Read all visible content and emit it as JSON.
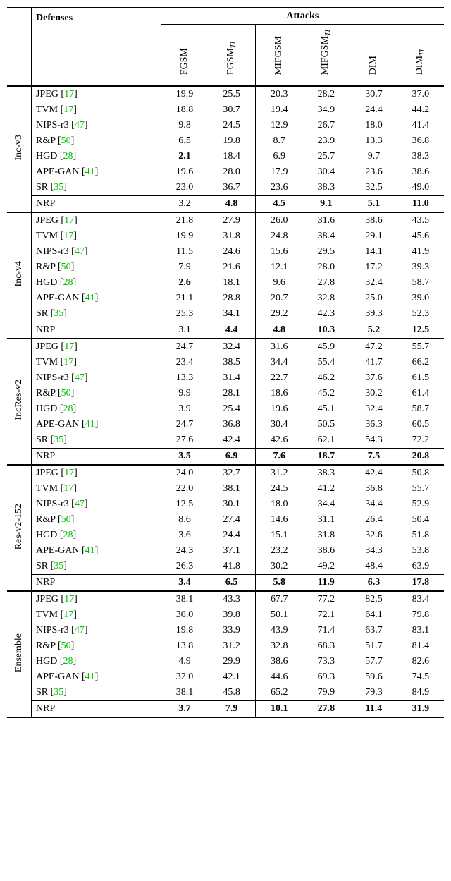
{
  "header": {
    "defenses_label": "Defenses",
    "attacks_label": "Attacks",
    "attack_cols": [
      "FGSM",
      "FGSM",
      "MIFGSM",
      "MIFGSM",
      "DIM",
      "DIM"
    ],
    "attack_subscripts": [
      "",
      "TI",
      "",
      "TI",
      "",
      "TI"
    ]
  },
  "ref_color": "#00c000",
  "bold_cells": {
    "Inc-v3": {
      "NRP": [
        1,
        2,
        3,
        4,
        5
      ],
      "HGD": [
        0
      ]
    },
    "Inc-v4": {
      "NRP": [
        1,
        2,
        3,
        4,
        5
      ],
      "HGD": [
        0
      ]
    },
    "IncRes-v2": {
      "NRP": [
        0,
        1,
        2,
        3,
        4,
        5
      ]
    },
    "Res-v2-152": {
      "NRP": [
        0,
        1,
        2,
        3,
        4,
        5
      ]
    },
    "Ensemble": {
      "NRP": [
        0,
        1,
        2,
        3,
        4,
        5
      ]
    }
  },
  "blocks": [
    {
      "model": "Inc-v3",
      "rows": [
        {
          "name": "JPEG",
          "ref": "17",
          "v": [
            "19.9",
            "25.5",
            "20.3",
            "28.2",
            "30.7",
            "37.0"
          ]
        },
        {
          "name": "TVM",
          "ref": "17",
          "v": [
            "18.8",
            "30.7",
            "19.4",
            "34.9",
            "24.4",
            "44.2"
          ]
        },
        {
          "name": "NIPS-r3",
          "ref": "47",
          "v": [
            "9.8",
            "24.5",
            "12.9",
            "26.7",
            "18.0",
            "41.4"
          ]
        },
        {
          "name": "R&P",
          "ref": "50",
          "v": [
            "6.5",
            "19.8",
            "8.7",
            "23.9",
            "13.3",
            "36.8"
          ]
        },
        {
          "name": "HGD",
          "ref": "28",
          "v": [
            "2.1",
            "18.4",
            "6.9",
            "25.7",
            "9.7",
            "38.3"
          ]
        },
        {
          "name": "APE-GAN",
          "ref": "41",
          "v": [
            "19.6",
            "28.0",
            "17.9",
            "30.4",
            "23.6",
            "38.6"
          ]
        },
        {
          "name": "SR",
          "ref": "35",
          "v": [
            "23.0",
            "36.7",
            "23.6",
            "38.3",
            "32.5",
            "49.0"
          ]
        }
      ],
      "nrp": {
        "name": "NRP",
        "v": [
          "3.2",
          "4.8",
          "4.5",
          "9.1",
          "5.1",
          "11.0"
        ]
      }
    },
    {
      "model": "Inc-v4",
      "rows": [
        {
          "name": "JPEG",
          "ref": "17",
          "v": [
            "21.8",
            "27.9",
            "26.0",
            "31.6",
            "38.6",
            "43.5"
          ]
        },
        {
          "name": "TVM",
          "ref": "17",
          "v": [
            "19.9",
            "31.8",
            "24.8",
            "38.4",
            "29.1",
            "45.6"
          ]
        },
        {
          "name": "NIPS-r3",
          "ref": "47",
          "v": [
            "11.5",
            "24.6",
            "15.6",
            "29.5",
            "14.1",
            "41.9"
          ]
        },
        {
          "name": "R&P",
          "ref": "50",
          "v": [
            "7.9",
            "21.6",
            "12.1",
            "28.0",
            "17.2",
            "39.3"
          ]
        },
        {
          "name": "HGD",
          "ref": "28",
          "v": [
            "2.6",
            "18.1",
            "9.6",
            "27.8",
            "32.4",
            "58.7"
          ]
        },
        {
          "name": "APE-GAN",
          "ref": "41",
          "v": [
            "21.1",
            "28.8",
            "20.7",
            "32.8",
            "25.0",
            "39.0"
          ]
        },
        {
          "name": "SR",
          "ref": "35",
          "v": [
            "25.3",
            "34.1",
            "29.2",
            "42.3",
            "39.3",
            "52.3"
          ]
        }
      ],
      "nrp": {
        "name": "NRP",
        "v": [
          "3.1",
          "4.4",
          "4.8",
          "10.3",
          "5.2",
          "12.5"
        ]
      }
    },
    {
      "model": "IncRes-v2",
      "rows": [
        {
          "name": "JPEG",
          "ref": "17",
          "v": [
            "24.7",
            "32.4",
            "31.6",
            "45.9",
            "47.2",
            "55.7"
          ]
        },
        {
          "name": "TVM",
          "ref": "17",
          "v": [
            "23.4",
            "38.5",
            "34.4",
            "55.4",
            "41.7",
            "66.2"
          ]
        },
        {
          "name": "NIPS-r3",
          "ref": "47",
          "v": [
            "13.3",
            "31.4",
            "22.7",
            "46.2",
            "37.6",
            "61.5"
          ]
        },
        {
          "name": "R&P",
          "ref": "50",
          "v": [
            "9.9",
            "28.1",
            "18.6",
            "45.2",
            "30.2",
            "61.4"
          ]
        },
        {
          "name": "HGD",
          "ref": "28",
          "v": [
            "3.9",
            "25.4",
            "19.6",
            "45.1",
            "32.4",
            "58.7"
          ]
        },
        {
          "name": "APE-GAN",
          "ref": "41",
          "v": [
            "24.7",
            "36.8",
            "30.4",
            "50.5",
            "36.3",
            "60.5"
          ]
        },
        {
          "name": "SR",
          "ref": "35",
          "v": [
            "27.6",
            "42.4",
            "42.6",
            "62.1",
            "54.3",
            "72.2"
          ]
        }
      ],
      "nrp": {
        "name": "NRP",
        "v": [
          "3.5",
          "6.9",
          "7.6",
          "18.7",
          "7.5",
          "20.8"
        ]
      }
    },
    {
      "model": "Res-v2-152",
      "rows": [
        {
          "name": "JPEG",
          "ref": "17",
          "v": [
            "24.0",
            "32.7",
            "31.2",
            "38.3",
            "42.4",
            "50.8"
          ]
        },
        {
          "name": "TVM",
          "ref": "17",
          "v": [
            "22.0",
            "38.1",
            "24.5",
            "41.2",
            "36.8",
            "55.7"
          ]
        },
        {
          "name": "NIPS-r3",
          "ref": "47",
          "v": [
            "12.5",
            "30.1",
            "18.0",
            "34.4",
            "34.4",
            "52.9"
          ]
        },
        {
          "name": "R&P",
          "ref": "50",
          "v": [
            "8.6",
            "27.4",
            "14.6",
            "31.1",
            "26.4",
            "50.4"
          ]
        },
        {
          "name": "HGD",
          "ref": "28",
          "v": [
            "3.6",
            "24.4",
            "15.1",
            "31.8",
            "32.6",
            "51.8"
          ]
        },
        {
          "name": "APE-GAN",
          "ref": "41",
          "v": [
            "24.3",
            "37.1",
            "23.2",
            "38.6",
            "34.3",
            "53.8"
          ]
        },
        {
          "name": "SR",
          "ref": "35",
          "v": [
            "26.3",
            "41.8",
            "30.2",
            "49.2",
            "48.4",
            "63.9"
          ]
        }
      ],
      "nrp": {
        "name": "NRP",
        "v": [
          "3.4",
          "6.5",
          "5.8",
          "11.9",
          "6.3",
          "17.8"
        ]
      }
    },
    {
      "model": "Ensemble",
      "rows": [
        {
          "name": "JPEG",
          "ref": "17",
          "v": [
            "38.1",
            "43.3",
            "67.7",
            "77.2",
            "82.5",
            "83.4"
          ]
        },
        {
          "name": "TVM",
          "ref": "17",
          "v": [
            "30.0",
            "39.8",
            "50.1",
            "72.1",
            "64.1",
            "79.8"
          ]
        },
        {
          "name": "NIPS-r3",
          "ref": "47",
          "v": [
            "19.8",
            "33.9",
            "43.9",
            "71.4",
            "63.7",
            "83.1"
          ]
        },
        {
          "name": "R&P",
          "ref": "50",
          "v": [
            "13.8",
            "31.2",
            "32.8",
            "68.3",
            "51.7",
            "81.4"
          ]
        },
        {
          "name": "HGD",
          "ref": "28",
          "v": [
            "4.9",
            "29.9",
            "38.6",
            "73.3",
            "57.7",
            "82.6"
          ]
        },
        {
          "name": "APE-GAN",
          "ref": "41",
          "v": [
            "32.0",
            "42.1",
            "44.6",
            "69.3",
            "59.6",
            "74.5"
          ]
        },
        {
          "name": "SR",
          "ref": "35",
          "v": [
            "38.1",
            "45.8",
            "65.2",
            "79.9",
            "79.3",
            "84.9"
          ]
        }
      ],
      "nrp": {
        "name": "NRP",
        "v": [
          "3.7",
          "7.9",
          "10.1",
          "27.8",
          "11.4",
          "31.9"
        ]
      }
    }
  ]
}
